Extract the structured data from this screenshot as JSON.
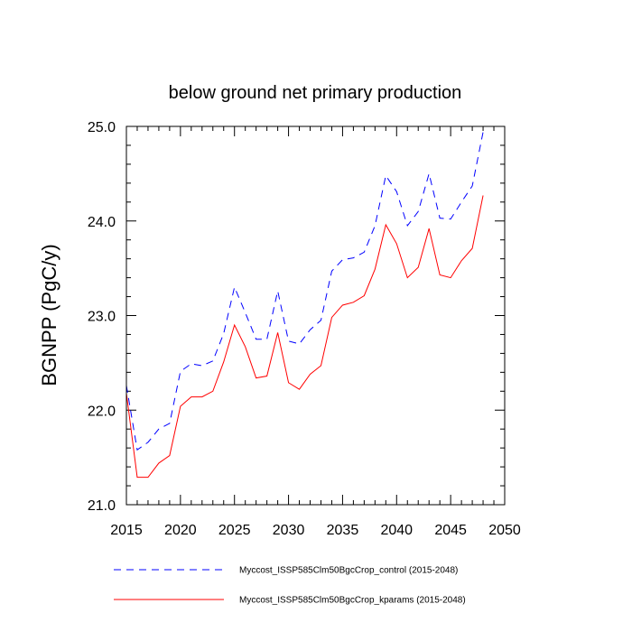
{
  "chart_data": {
    "type": "line",
    "title": "below ground net primary production",
    "xlabel": "",
    "ylabel": "BGNPP  (PgC/y)",
    "xlim": [
      2015,
      2050
    ],
    "ylim": [
      21.0,
      25.0
    ],
    "x_ticks": [
      2015,
      2020,
      2025,
      2030,
      2035,
      2040,
      2045,
      2050
    ],
    "y_ticks": [
      21.0,
      22.0,
      23.0,
      24.0,
      25.0
    ],
    "x_tick_labels": [
      "2015",
      "2020",
      "2025",
      "2030",
      "2035",
      "2040",
      "2045",
      "2050"
    ],
    "y_tick_labels": [
      "21.0",
      "22.0",
      "23.0",
      "24.0",
      "25.0"
    ],
    "grid": false,
    "legend_position": "bottom",
    "x": [
      2015,
      2016,
      2017,
      2018,
      2019,
      2020,
      2021,
      2022,
      2023,
      2024,
      2025,
      2026,
      2027,
      2028,
      2029,
      2030,
      2031,
      2032,
      2033,
      2034,
      2035,
      2036,
      2037,
      2038,
      2039,
      2040,
      2041,
      2042,
      2043,
      2044,
      2045,
      2046,
      2047,
      2048
    ],
    "series": [
      {
        "name": "Myccost_ISSP585Clm50BgcCrop_control (2015-2048)",
        "color": "#0000ff",
        "style": "dashed",
        "values": [
          22.26,
          21.58,
          21.66,
          21.8,
          21.86,
          22.41,
          22.49,
          22.47,
          22.52,
          22.81,
          23.3,
          23.03,
          22.75,
          22.75,
          23.26,
          22.73,
          22.7,
          22.85,
          22.95,
          23.47,
          23.59,
          23.61,
          23.67,
          23.95,
          24.48,
          24.31,
          23.95,
          24.1,
          24.5,
          24.03,
          24.02,
          24.2,
          24.37,
          24.94
        ]
      },
      {
        "name": "Myccost_ISSP585Clm50BgcCrop_kparams (2015-2048)",
        "color": "#ff0000",
        "style": "solid",
        "values": [
          22.18,
          21.29,
          21.29,
          21.44,
          21.52,
          22.04,
          22.14,
          22.14,
          22.2,
          22.51,
          22.9,
          22.67,
          22.34,
          22.36,
          22.82,
          22.29,
          22.22,
          22.38,
          22.47,
          22.98,
          23.11,
          23.14,
          23.21,
          23.49,
          23.96,
          23.76,
          23.4,
          23.51,
          23.92,
          23.43,
          23.4,
          23.58,
          23.71,
          24.27
        ]
      }
    ]
  }
}
